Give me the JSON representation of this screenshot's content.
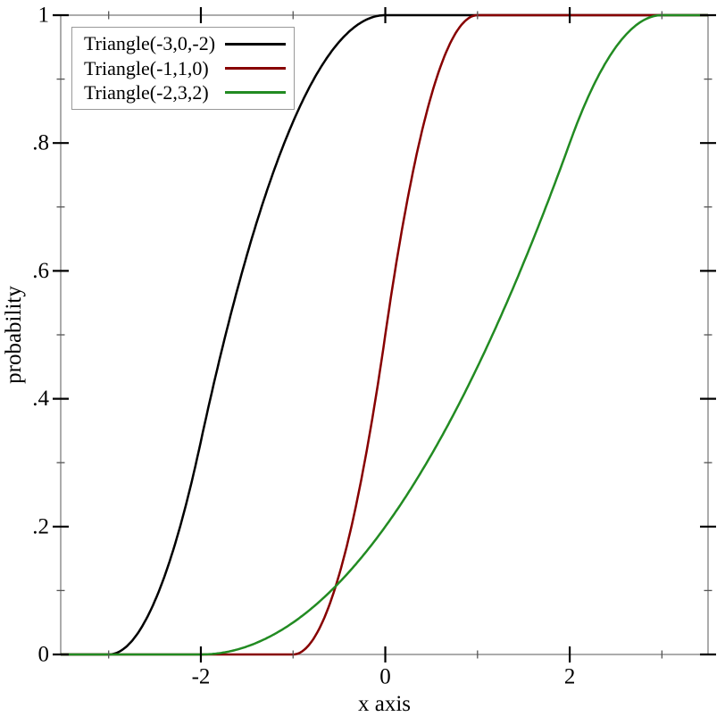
{
  "chart_data": {
    "type": "line",
    "subtype": "cdf-curves",
    "xlabel": "x axis",
    "ylabel": "probability",
    "xlim": [
      -3.52,
      3.5
    ],
    "ylim": [
      0,
      1
    ],
    "grid": false,
    "frame_color": "#898989",
    "major_tick_color": "#000000",
    "minor_tick_color": "#555555",
    "legend_position": "top-left",
    "x_ticks": {
      "major": [
        -2,
        0,
        2
      ],
      "major_labels": [
        "-2",
        "0",
        "2"
      ],
      "minor": [
        -3,
        -1,
        1,
        3
      ]
    },
    "y_ticks": {
      "major": [
        0,
        0.2,
        0.4,
        0.6,
        0.8,
        1
      ],
      "major_labels": [
        "0",
        ".2",
        ".4",
        ".6",
        ".8",
        "1"
      ],
      "minor": [
        0.1,
        0.3,
        0.5,
        0.7,
        0.9
      ]
    },
    "series": [
      {
        "name": "Triangle(-3,0,-2)",
        "color": "#000000",
        "distribution": "triangular",
        "params": {
          "min": -3,
          "max": 0,
          "mode": -2
        },
        "sample_points": [
          [
            -3,
            0
          ],
          [
            -2.5,
            0.083
          ],
          [
            -2,
            0.333
          ],
          [
            -1.5,
            0.625
          ],
          [
            -1,
            0.833
          ],
          [
            -0.5,
            0.958
          ],
          [
            0,
            1
          ]
        ]
      },
      {
        "name": "Triangle(-1,1,0)",
        "color": "#870000",
        "distribution": "triangular",
        "params": {
          "min": -1,
          "max": 1,
          "mode": 0
        },
        "sample_points": [
          [
            -1,
            0
          ],
          [
            -0.5,
            0.125
          ],
          [
            0,
            0.5
          ],
          [
            0.5,
            0.875
          ],
          [
            1,
            1
          ]
        ]
      },
      {
        "name": "Triangle(-2,3,2)",
        "color": "#228b22",
        "distribution": "triangular",
        "params": {
          "min": -2,
          "max": 3,
          "mode": 2
        },
        "sample_points": [
          [
            -2,
            0
          ],
          [
            -1,
            0.05
          ],
          [
            0,
            0.2
          ],
          [
            1,
            0.45
          ],
          [
            2,
            0.8
          ],
          [
            2.5,
            0.95
          ],
          [
            3,
            1
          ]
        ]
      }
    ]
  }
}
